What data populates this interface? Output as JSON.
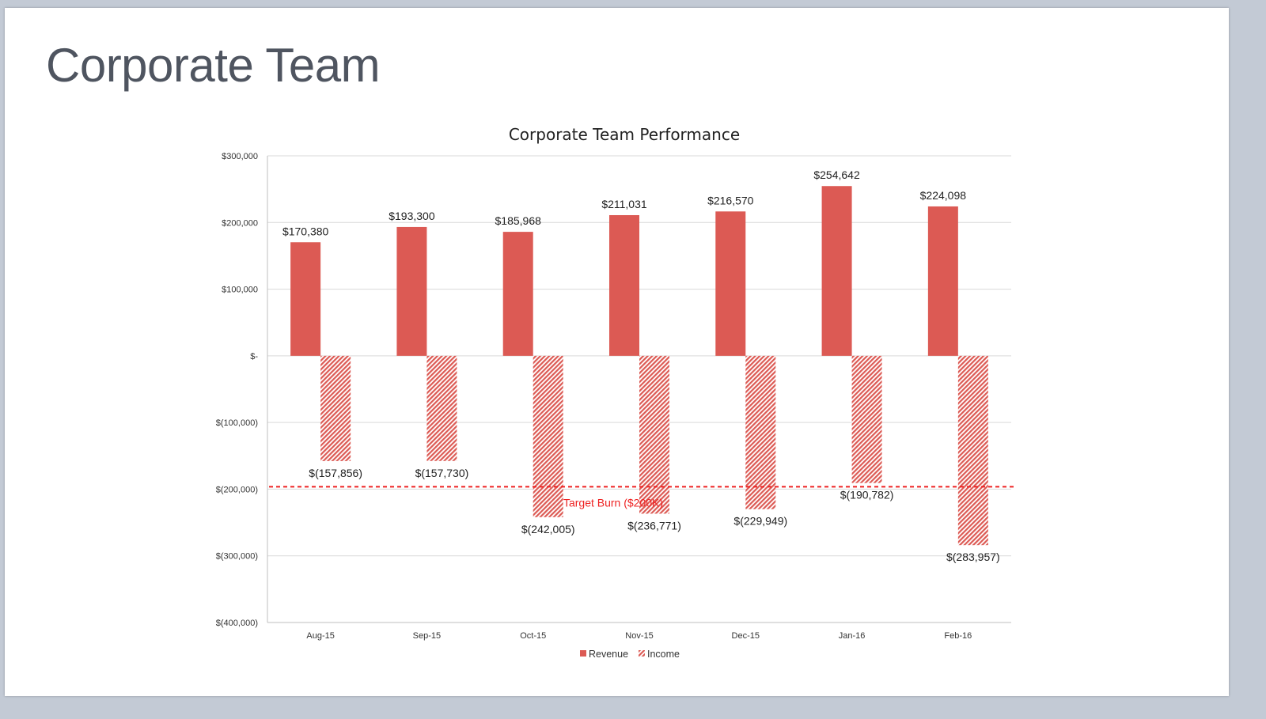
{
  "slide": {
    "title": "Corporate Team"
  },
  "chart_data": {
    "type": "bar",
    "title": "Corporate Team Performance",
    "categories": [
      "Aug-15",
      "Sep-15",
      "Oct-15",
      "Nov-15",
      "Dec-15",
      "Jan-16",
      "Feb-16"
    ],
    "series": [
      {
        "name": "Revenue",
        "values": [
          170380,
          193300,
          185968,
          211031,
          216570,
          254642,
          224098
        ],
        "labels": [
          "$170,380",
          "$193,300",
          "$185,968",
          "$211,031",
          "$216,570",
          "$254,642",
          "$224,098"
        ],
        "color": "#dc5a54",
        "fill": "solid"
      },
      {
        "name": "Income",
        "values": [
          -157856,
          -157730,
          -242005,
          -236771,
          -229949,
          -190782,
          -283957
        ],
        "labels": [
          "$(157,856)",
          "$(157,730)",
          "$(242,005)",
          "$(236,771)",
          "$(229,949)",
          "$(190,782)",
          "$(283,957)"
        ],
        "color": "#dc5a54",
        "fill": "hatched"
      }
    ],
    "ylim": [
      -400000,
      300000
    ],
    "yticks": [
      300000,
      200000,
      100000,
      0,
      -100000,
      -200000,
      -300000,
      -400000
    ],
    "ytick_labels": [
      "$300,000",
      "$200,000",
      "$100,000",
      "$-",
      "$(100,000)",
      "$(200,000)",
      "$(300,000)",
      "$(400,000)"
    ],
    "grid": true,
    "legend_position": "bottom",
    "reference_line": {
      "value": -200000,
      "label": "Target Burn ($200K)",
      "color": "#ee2222",
      "style": "dashed"
    },
    "xlabel": "",
    "ylabel": ""
  }
}
